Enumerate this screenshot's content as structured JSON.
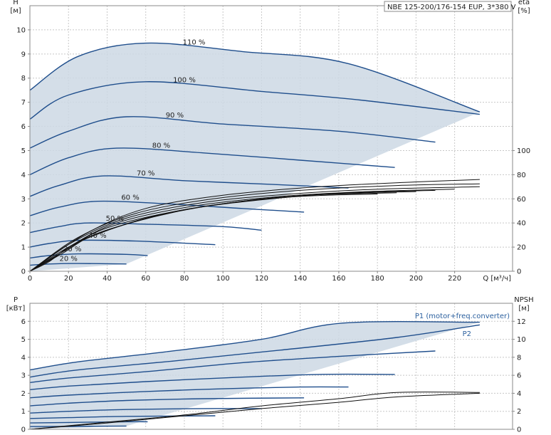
{
  "title": "NBE 125-200/176-154 EUP, 3*380 V",
  "colors": {
    "curve": "#1f4e8c",
    "fill": "#cdd8e4",
    "grid": "#c8c8c8",
    "text": "#222222",
    "efficiency": "#111111"
  },
  "chart_data": [
    {
      "type": "line",
      "name": "head",
      "ylabel_left": "H\n[м]",
      "ylabel_right": "eta\n[%]",
      "xlabel": "Q [м³/ч]",
      "xlim": [
        0,
        250
      ],
      "ylim": [
        0,
        11
      ],
      "x_ticks": [
        0,
        20,
        40,
        60,
        80,
        100,
        120,
        140,
        160,
        180,
        200,
        220
      ],
      "y_ticks_left": [
        0,
        1,
        2,
        3,
        4,
        5,
        6,
        7,
        8,
        9,
        10
      ],
      "y_ticks_right": [
        0,
        20,
        40,
        60,
        80,
        100
      ],
      "y_right_scale": {
        "eta_0_at_H": 0,
        "eta_100_at_H": 5
      },
      "grid": true,
      "speed_labels": [
        "110 %",
        "100 %",
        "90 %",
        "80 %",
        "70 %",
        "60 %",
        "50 %",
        "40 %",
        "30 %",
        "20 %"
      ],
      "series": [
        {
          "name": "110 %",
          "points": [
            [
              0,
              7.5
            ],
            [
              25,
              8.9
            ],
            [
              60,
              9.45
            ],
            [
              110,
              9.1
            ],
            [
              165,
              8.6
            ],
            [
              233,
              6.6
            ]
          ]
        },
        {
          "name": "100 %",
          "points": [
            [
              0,
              6.3
            ],
            [
              20,
              7.3
            ],
            [
              60,
              7.85
            ],
            [
              120,
              7.45
            ],
            [
              170,
              7.1
            ],
            [
              233,
              6.5
            ]
          ]
        },
        {
          "name": "90 %",
          "points": [
            [
              0,
              5.1
            ],
            [
              20,
              5.8
            ],
            [
              50,
              6.4
            ],
            [
              100,
              6.1
            ],
            [
              160,
              5.8
            ],
            [
              210,
              5.35
            ]
          ]
        },
        {
          "name": "80 %",
          "points": [
            [
              0,
              4.0
            ],
            [
              20,
              4.7
            ],
            [
              45,
              5.1
            ],
            [
              90,
              4.9
            ],
            [
              140,
              4.6
            ],
            [
              189,
              4.3
            ]
          ]
        },
        {
          "name": "70 %",
          "points": [
            [
              0,
              3.1
            ],
            [
              15,
              3.55
            ],
            [
              38,
              3.95
            ],
            [
              80,
              3.75
            ],
            [
              125,
              3.6
            ],
            [
              165,
              3.45
            ]
          ]
        },
        {
          "name": "60 %",
          "points": [
            [
              0,
              2.3
            ],
            [
              15,
              2.65
            ],
            [
              35,
              2.9
            ],
            [
              70,
              2.8
            ],
            [
              110,
              2.6
            ],
            [
              142,
              2.45
            ]
          ]
        },
        {
          "name": "50 %",
          "points": [
            [
              0,
              1.6
            ],
            [
              15,
              1.85
            ],
            [
              30,
              2.0
            ],
            [
              60,
              1.95
            ],
            [
              100,
              1.85
            ],
            [
              120,
              1.7
            ]
          ]
        },
        {
          "name": "40 %",
          "points": [
            [
              0,
              1.0
            ],
            [
              10,
              1.15
            ],
            [
              25,
              1.28
            ],
            [
              55,
              1.25
            ],
            [
              96,
              1.1
            ]
          ]
        },
        {
          "name": "30 %",
          "points": [
            [
              0,
              0.55
            ],
            [
              10,
              0.65
            ],
            [
              25,
              0.72
            ],
            [
              50,
              0.7
            ],
            [
              61,
              0.65
            ]
          ]
        },
        {
          "name": "20 %",
          "points": [
            [
              0,
              0.25
            ],
            [
              10,
              0.3
            ],
            [
              25,
              0.32
            ],
            [
              50,
              0.3
            ]
          ]
        }
      ],
      "efficiency_curves": [
        {
          "points": [
            [
              0,
              0
            ],
            [
              30,
              1.6
            ],
            [
              60,
              2.6
            ],
            [
              100,
              3.15
            ],
            [
              150,
              3.5
            ],
            [
              200,
              3.7
            ],
            [
              233,
              3.8
            ]
          ]
        },
        {
          "points": [
            [
              0,
              0
            ],
            [
              25,
              1.4
            ],
            [
              55,
              2.4
            ],
            [
              95,
              3.0
            ],
            [
              140,
              3.35
            ],
            [
              190,
              3.55
            ],
            [
              233,
              3.62
            ]
          ]
        },
        {
          "points": [
            [
              0,
              0
            ],
            [
              22,
              1.2
            ],
            [
              50,
              2.2
            ],
            [
              90,
              2.85
            ],
            [
              135,
              3.2
            ],
            [
              180,
              3.4
            ],
            [
              233,
              3.5
            ]
          ]
        },
        {
          "points": [
            [
              0,
              0
            ],
            [
              20,
              1.0
            ],
            [
              45,
              2.0
            ],
            [
              85,
              2.7
            ],
            [
              130,
              3.1
            ],
            [
              175,
              3.3
            ],
            [
              220,
              3.4
            ]
          ]
        },
        {
          "points": [
            [
              0,
              0
            ],
            [
              18,
              0.85
            ],
            [
              40,
              1.8
            ],
            [
              80,
              2.55
            ],
            [
              125,
              3.0
            ],
            [
              165,
              3.25
            ],
            [
              210,
              3.35
            ]
          ]
        },
        {
          "points": [
            [
              0,
              0
            ],
            [
              16,
              0.7
            ],
            [
              36,
              1.6
            ],
            [
              75,
              2.45
            ],
            [
              115,
              2.95
            ],
            [
              155,
              3.2
            ],
            [
              200,
              3.3
            ]
          ]
        },
        {
          "points": [
            [
              0,
              0
            ],
            [
              12,
              0.55
            ],
            [
              30,
              1.4
            ],
            [
              68,
              2.35
            ],
            [
              105,
              2.85
            ],
            [
              145,
              3.15
            ],
            [
              190,
              3.25
            ]
          ]
        },
        {
          "points": [
            [
              0,
              0
            ],
            [
              10,
              0.4
            ],
            [
              25,
              1.2
            ],
            [
              60,
              2.2
            ],
            [
              100,
              2.8
            ],
            [
              140,
              3.1
            ],
            [
              180,
              3.2
            ]
          ]
        }
      ]
    },
    {
      "type": "line",
      "name": "power",
      "ylabel_left": "P\n[кВт]",
      "ylabel_right": "NPSH\n[м]",
      "xlim": [
        0,
        250
      ],
      "ylim": [
        0,
        7
      ],
      "y_ticks_left": [
        0,
        1,
        2,
        3,
        4,
        5,
        6
      ],
      "y_ticks_right": [
        0,
        2,
        4,
        6,
        8,
        10,
        12
      ],
      "y_right_scale": {
        "npsh_0_at_P": 0,
        "npsh_12_at_P": 6
      },
      "grid": true,
      "legend_labels": [
        "P1 (motor+freq.converter)",
        "P2"
      ],
      "series": [
        {
          "name": "P1 (motor+freq.converter)",
          "points": [
            [
              0,
              3.3
            ],
            [
              25,
              3.75
            ],
            [
              70,
              4.3
            ],
            [
              120,
              5.0
            ],
            [
              162,
              5.9
            ],
            [
              233,
              5.95
            ]
          ]
        },
        {
          "points": [
            [
              0,
              2.9
            ],
            [
              25,
              3.3
            ],
            [
              75,
              3.8
            ],
            [
              130,
              4.4
            ],
            [
              190,
              5.1
            ],
            [
              233,
              5.8
            ]
          ]
        },
        {
          "points": [
            [
              0,
              2.6
            ],
            [
              20,
              2.85
            ],
            [
              60,
              3.2
            ],
            [
              110,
              3.7
            ],
            [
              160,
              4.05
            ],
            [
              210,
              4.35
            ]
          ]
        },
        {
          "points": [
            [
              0,
              2.2
            ],
            [
              20,
              2.4
            ],
            [
              60,
              2.65
            ],
            [
              110,
              2.9
            ],
            [
              150,
              3.05
            ],
            [
              189,
              3.05
            ]
          ]
        },
        {
          "points": [
            [
              0,
              1.75
            ],
            [
              20,
              1.9
            ],
            [
              60,
              2.1
            ],
            [
              100,
              2.25
            ],
            [
              140,
              2.35
            ],
            [
              165,
              2.35
            ]
          ]
        },
        {
          "points": [
            [
              0,
              1.3
            ],
            [
              20,
              1.45
            ],
            [
              50,
              1.6
            ],
            [
              90,
              1.7
            ],
            [
              142,
              1.75
            ]
          ]
        },
        {
          "points": [
            [
              0,
              0.9
            ],
            [
              20,
              1.0
            ],
            [
              50,
              1.1
            ],
            [
              90,
              1.15
            ],
            [
              120,
              1.15
            ]
          ]
        },
        {
          "points": [
            [
              0,
              0.6
            ],
            [
              20,
              0.65
            ],
            [
              50,
              0.72
            ],
            [
              96,
              0.75
            ]
          ]
        },
        {
          "points": [
            [
              0,
              0.35
            ],
            [
              20,
              0.38
            ],
            [
              50,
              0.42
            ],
            [
              61,
              0.42
            ]
          ]
        },
        {
          "points": [
            [
              0,
              0.15
            ],
            [
              20,
              0.16
            ],
            [
              50,
              0.18
            ]
          ]
        }
      ],
      "npsh_curves": [
        {
          "points": [
            [
              0,
              0
            ],
            [
              40,
              0.4
            ],
            [
              80,
              0.8
            ],
            [
              120,
              1.3
            ],
            [
              160,
              1.7
            ],
            [
              190,
              2.05
            ],
            [
              233,
              2.05
            ]
          ]
        },
        {
          "points": [
            [
              0,
              0
            ],
            [
              40,
              0.35
            ],
            [
              80,
              0.75
            ],
            [
              120,
              1.15
            ],
            [
              160,
              1.5
            ],
            [
              190,
              1.8
            ],
            [
              233,
              2.0
            ]
          ]
        }
      ]
    }
  ]
}
